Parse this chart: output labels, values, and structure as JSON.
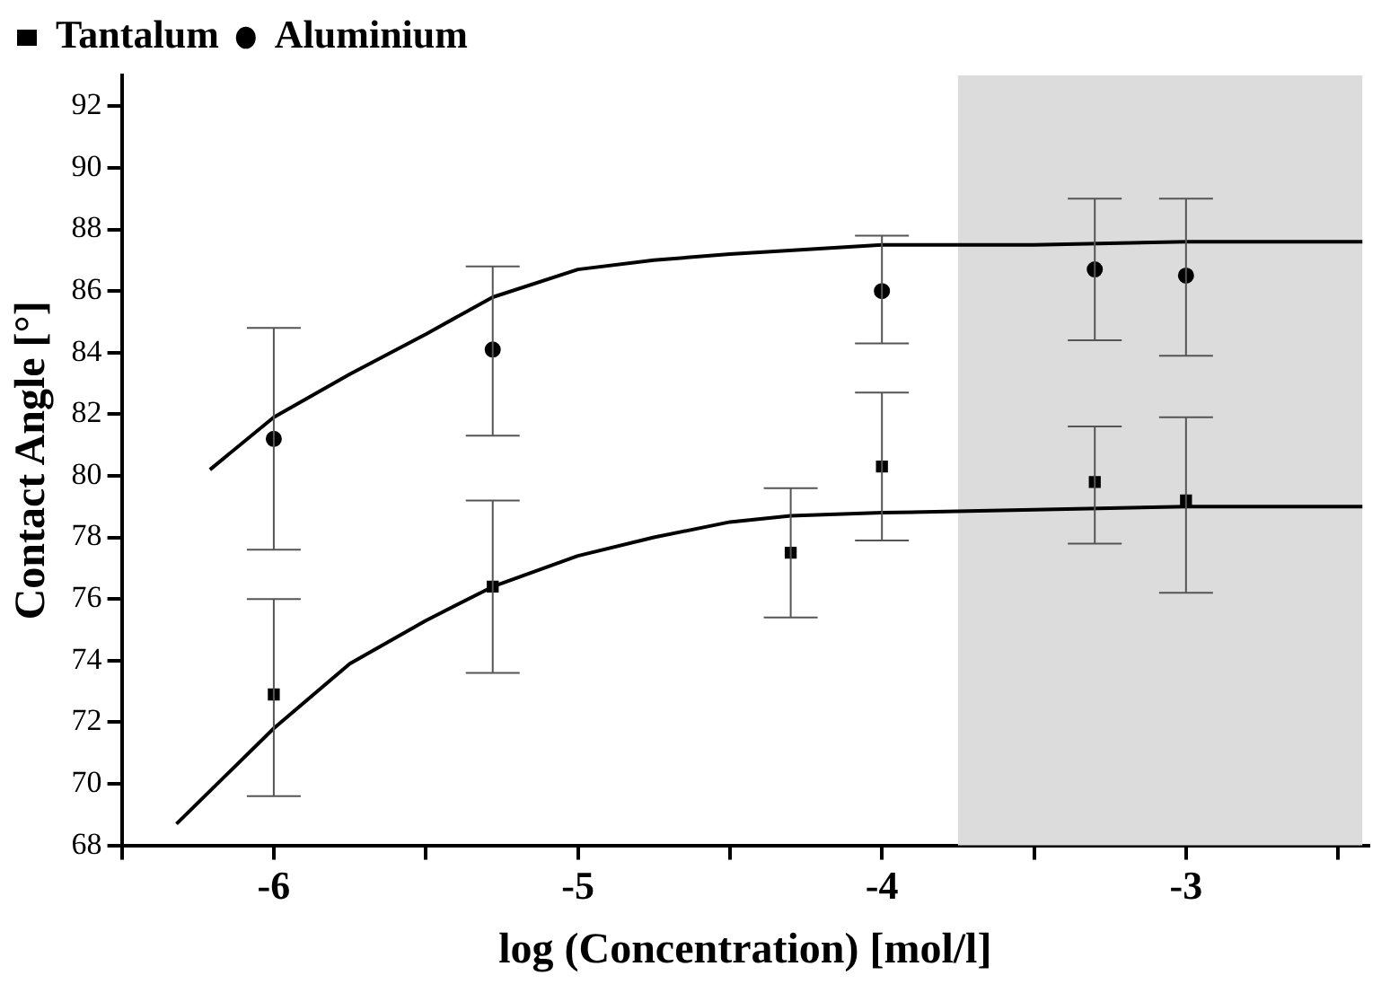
{
  "chart_data": {
    "type": "scatter",
    "xlabel": "log (Concentration) [mol/l]",
    "ylabel": "Contact Angle [°]",
    "xlim": [
      -6.5,
      -2.4
    ],
    "ylim": [
      68,
      93
    ],
    "xticks": [
      {
        "value": -6.5,
        "label": null
      },
      -6,
      {
        "value": -5.5,
        "label": null
      },
      -5,
      {
        "value": -4.5,
        "label": null
      },
      -4,
      {
        "value": -3.5,
        "label": null
      },
      -3,
      {
        "value": -2.5,
        "label": null
      }
    ],
    "yticks": [
      68,
      70,
      72,
      74,
      76,
      78,
      80,
      82,
      84,
      86,
      88,
      90,
      92
    ],
    "grid": false,
    "legend": "top left",
    "bands": [
      {
        "axis": "x",
        "from": -3.75,
        "to": -2.42,
        "color": "#dcdcdc"
      }
    ],
    "series": [
      {
        "name": "Tantalum",
        "marker": "square",
        "color": "#000000",
        "x": [
          -6,
          -5.28,
          -4.3,
          -4,
          -3.3,
          -3
        ],
        "values": [
          72.9,
          76.4,
          77.5,
          80.3,
          79.8,
          79.2
        ],
        "errors": [
          [
            69.6,
            76.0
          ],
          [
            73.6,
            79.2
          ],
          [
            75.4,
            79.6
          ],
          [
            77.9,
            82.7
          ],
          [
            77.8,
            81.6
          ],
          [
            76.2,
            81.9
          ]
        ]
      },
      {
        "name": "Aluminium",
        "marker": "circle",
        "color": "#000000",
        "x": [
          -6,
          -5.28,
          -4,
          -3.3,
          -3
        ],
        "values": [
          81.2,
          84.1,
          86.0,
          86.7,
          86.5
        ],
        "errors": [
          [
            77.6,
            84.8
          ],
          [
            81.3,
            86.8
          ],
          [
            84.3,
            87.8
          ],
          [
            84.4,
            89.0
          ],
          [
            83.9,
            89.0
          ]
        ]
      },
      {
        "type": "line",
        "marker": "none",
        "color": "#000000",
        "x": [
          -6.32,
          -6,
          -5.75,
          -5.5,
          -5.28,
          -5,
          -4.75,
          -4.5,
          -4.3,
          -4,
          -3.5,
          -3,
          -2.42
        ],
        "values": [
          68.7,
          71.8,
          73.9,
          75.3,
          76.4,
          77.4,
          78.0,
          78.5,
          78.7,
          78.8,
          78.9,
          79.0,
          79.0
        ]
      },
      {
        "type": "line",
        "marker": "none",
        "color": "#000000",
        "x": [
          -6.21,
          -6,
          -5.75,
          -5.5,
          -5.28,
          -5,
          -4.75,
          -4.5,
          -4,
          -3.5,
          -3,
          -2.42
        ],
        "values": [
          80.2,
          81.9,
          83.3,
          84.6,
          85.8,
          86.7,
          87.0,
          87.2,
          87.5,
          87.5,
          87.6,
          87.6
        ]
      }
    ]
  }
}
